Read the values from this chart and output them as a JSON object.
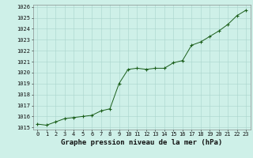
{
  "x": [
    0,
    1,
    2,
    3,
    4,
    5,
    6,
    7,
    8,
    9,
    10,
    11,
    12,
    13,
    14,
    15,
    16,
    17,
    18,
    19,
    20,
    21,
    22,
    23
  ],
  "y": [
    1015.3,
    1015.2,
    1015.5,
    1015.8,
    1015.9,
    1016.0,
    1016.1,
    1016.5,
    1016.7,
    1019.0,
    1020.3,
    1020.4,
    1020.3,
    1020.4,
    1020.4,
    1020.9,
    1021.1,
    1022.5,
    1022.8,
    1023.3,
    1023.8,
    1024.4,
    1025.2,
    1025.7
  ],
  "ylim": [
    1014.8,
    1026.2
  ],
  "xlim": [
    -0.5,
    23.5
  ],
  "yticks": [
    1015,
    1016,
    1017,
    1018,
    1019,
    1020,
    1021,
    1022,
    1023,
    1024,
    1025,
    1026
  ],
  "xticks": [
    0,
    1,
    2,
    3,
    4,
    5,
    6,
    7,
    8,
    9,
    10,
    11,
    12,
    13,
    14,
    15,
    16,
    17,
    18,
    19,
    20,
    21,
    22,
    23
  ],
  "xlabel": "Graphe pression niveau de la mer (hPa)",
  "line_color": "#1a5e1a",
  "marker_color": "#1a5e1a",
  "bg_color": "#cef0e8",
  "grid_color": "#aad4cc",
  "tick_fontsize": 5.0,
  "xlabel_fontsize": 6.5
}
